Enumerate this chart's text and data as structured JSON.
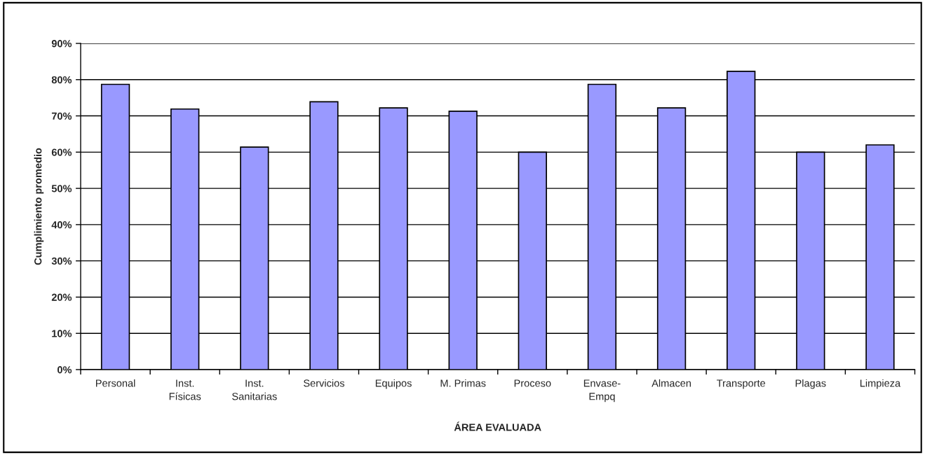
{
  "chart_data": {
    "type": "bar",
    "xlabel": "ÁREA EVALUADA",
    "ylabel": "Cumplimiento promedio",
    "categories": [
      "Personal",
      "Inst.\nFísicas",
      "Inst.\nSanitarias",
      "Servicios",
      "Equipos",
      "M. Primas",
      "Proceso",
      "Envase-\nEmpq",
      "Almacen",
      "Transporte",
      "Plagas",
      "Limpieza"
    ],
    "values": [
      78.7,
      71.9,
      61.4,
      73.9,
      72.2,
      71.3,
      60.0,
      78.7,
      72.2,
      82.3,
      60.0,
      62.0
    ],
    "color": "#9999ff",
    "ylim": [
      0,
      90
    ],
    "yticks": [
      {
        "value": 0,
        "label": "0%"
      },
      {
        "value": 10,
        "label": "10%"
      },
      {
        "value": 20,
        "label": "20%"
      },
      {
        "value": 30,
        "label": "30%"
      },
      {
        "value": 40,
        "label": "40%"
      },
      {
        "value": 50,
        "label": "50%"
      },
      {
        "value": 60,
        "label": "60%"
      },
      {
        "value": 70,
        "label": "70%"
      },
      {
        "value": 80,
        "label": "80%"
      },
      {
        "value": 90,
        "label": "90%"
      }
    ],
    "grid": "y"
  }
}
